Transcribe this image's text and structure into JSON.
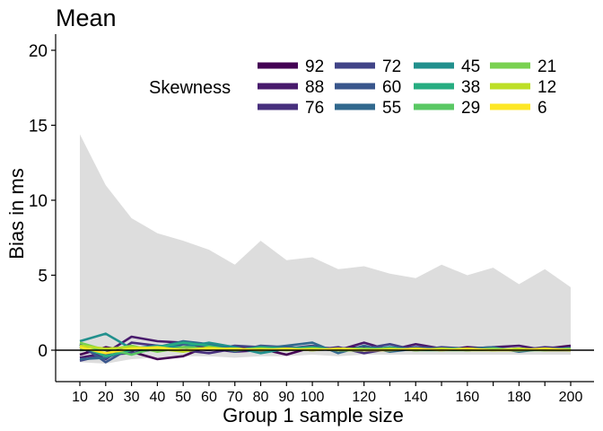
{
  "chart_data": {
    "type": "line",
    "title": "Mean",
    "xlabel": "Group 1 sample size",
    "ylabel": "Bias in ms",
    "xlim": [
      10,
      200
    ],
    "ylim": [
      -2,
      21
    ],
    "x_ticks": [
      10,
      20,
      30,
      40,
      50,
      60,
      70,
      80,
      90,
      100,
      120,
      140,
      160,
      180,
      200
    ],
    "x_tick_labels": [
      "10",
      "20",
      "30",
      "40",
      "50",
      "60",
      "70",
      "80",
      "90",
      "100",
      "120",
      "140",
      "160",
      "180",
      "200"
    ],
    "x_minor_ticks": [
      110,
      130,
      150,
      170,
      190
    ],
    "y_ticks": [
      0,
      5,
      10,
      15,
      20
    ],
    "y_tick_labels": [
      "0",
      "5",
      "10",
      "15",
      "20"
    ],
    "grid": false,
    "legend": {
      "title": "Skewness",
      "placement": "top-right",
      "columns": 4
    },
    "reference_line": {
      "y": 0,
      "color": "#000000"
    },
    "x": [
      10,
      20,
      30,
      40,
      50,
      60,
      70,
      80,
      90,
      100,
      110,
      120,
      130,
      140,
      150,
      160,
      170,
      180,
      190,
      200
    ],
    "band": {
      "color": "#dddddd",
      "upper": [
        14.4,
        11.0,
        8.8,
        7.8,
        7.3,
        6.7,
        5.7,
        7.3,
        6.0,
        6.2,
        5.4,
        5.6,
        5.1,
        4.8,
        5.7,
        5.0,
        5.5,
        4.4,
        5.4,
        4.2
      ],
      "lower": [
        -0.8,
        -0.9,
        -0.6,
        -0.5,
        -0.4,
        -0.4,
        -0.5,
        -0.4,
        -0.4,
        -0.3,
        -0.4,
        -0.3,
        -0.3,
        -0.3,
        -0.3,
        -0.3,
        -0.3,
        -0.3,
        -0.3,
        -0.3
      ]
    },
    "series": [
      {
        "name": "92",
        "color": "#440154",
        "values": [
          -0.3,
          0.2,
          -0.1,
          -0.6,
          -0.4,
          0.3,
          0.2,
          0.1,
          -0.3,
          0.2,
          0.1,
          0.2,
          0.0,
          0.1,
          0.0,
          0.2,
          0.1,
          0.0,
          0.1,
          0.3
        ]
      },
      {
        "name": "88",
        "color": "#481a6c",
        "values": [
          -0.5,
          -0.2,
          0.9,
          0.6,
          0.5,
          0.1,
          -0.1,
          0.0,
          0.2,
          0.1,
          0.0,
          0.5,
          0.0,
          0.4,
          0.1,
          0.1,
          0.2,
          0.3,
          0.0,
          0.0
        ]
      },
      {
        "name": "76",
        "color": "#472f7d",
        "values": [
          0.2,
          -0.6,
          0.5,
          0.3,
          0.0,
          -0.2,
          0.1,
          -0.1,
          0.1,
          0.0,
          0.2,
          -0.2,
          0.1,
          0.0,
          0.1,
          0.0,
          0.1,
          0.0,
          0.2,
          0.1
        ]
      },
      {
        "name": "72",
        "color": "#414487",
        "values": [
          -0.7,
          -0.3,
          -0.2,
          0.1,
          0.2,
          0.0,
          0.3,
          0.2,
          0.1,
          0.3,
          0.0,
          0.1,
          0.4,
          0.0,
          0.2,
          0.1,
          0.0,
          0.1,
          0.0,
          0.2
        ]
      },
      {
        "name": "60",
        "color": "#39568c",
        "values": [
          0.4,
          -0.8,
          0.2,
          0.0,
          0.4,
          0.3,
          -0.1,
          0.3,
          0.2,
          0.1,
          0.0,
          0.1,
          0.0,
          0.2,
          0.1,
          0.0,
          0.1,
          0.0,
          0.1,
          0.1
        ]
      },
      {
        "name": "55",
        "color": "#31688e",
        "values": [
          -0.6,
          -0.5,
          0.1,
          0.2,
          0.6,
          0.4,
          0.0,
          0.1,
          0.3,
          0.5,
          -0.2,
          0.3,
          -0.1,
          0.1,
          0.0,
          0.1,
          0.2,
          -0.1,
          0.1,
          0.0
        ]
      },
      {
        "name": "45",
        "color": "#21908d",
        "values": [
          0.6,
          1.1,
          0.1,
          0.3,
          0.2,
          0.5,
          0.2,
          -0.2,
          0.1,
          0.0,
          0.1,
          0.0,
          0.2,
          0.0,
          0.1,
          0.0,
          0.1,
          0.0,
          0.1,
          0.0
        ]
      },
      {
        "name": "38",
        "color": "#27ad81",
        "values": [
          0.3,
          -0.4,
          0.0,
          0.2,
          0.5,
          0.3,
          0.0,
          0.2,
          0.1,
          0.2,
          0.0,
          0.1,
          0.1,
          0.0,
          0.1,
          0.1,
          0.0,
          0.1,
          0.0,
          0.1
        ]
      },
      {
        "name": "29",
        "color": "#5ac864",
        "values": [
          0.0,
          0.1,
          -0.3,
          0.2,
          0.0,
          0.1,
          0.0,
          0.1,
          0.0,
          0.1,
          0.0,
          0.0,
          0.1,
          0.0,
          0.0,
          0.1,
          0.0,
          0.0,
          0.1,
          0.0
        ]
      },
      {
        "name": "21",
        "color": "#7ad151",
        "values": [
          0.5,
          0.0,
          0.3,
          -0.1,
          0.2,
          0.1,
          0.1,
          0.0,
          0.1,
          0.0,
          0.1,
          0.1,
          0.0,
          0.1,
          0.0,
          0.0,
          0.1,
          0.0,
          0.0,
          0.1
        ]
      },
      {
        "name": "12",
        "color": "#bddf26",
        "values": [
          0.3,
          0.1,
          0.2,
          0.1,
          -0.1,
          0.2,
          0.0,
          0.1,
          0.0,
          0.1,
          0.0,
          0.0,
          0.1,
          0.0,
          0.1,
          0.0,
          0.0,
          0.1,
          0.0,
          0.0
        ]
      },
      {
        "name": "6",
        "color": "#fde725",
        "values": [
          0.2,
          -0.2,
          0.1,
          0.2,
          0.0,
          0.1,
          0.1,
          0.0,
          0.1,
          0.0,
          0.1,
          0.0,
          0.0,
          0.1,
          0.0,
          0.1,
          0.0,
          0.0,
          0.1,
          0.0
        ]
      }
    ]
  }
}
